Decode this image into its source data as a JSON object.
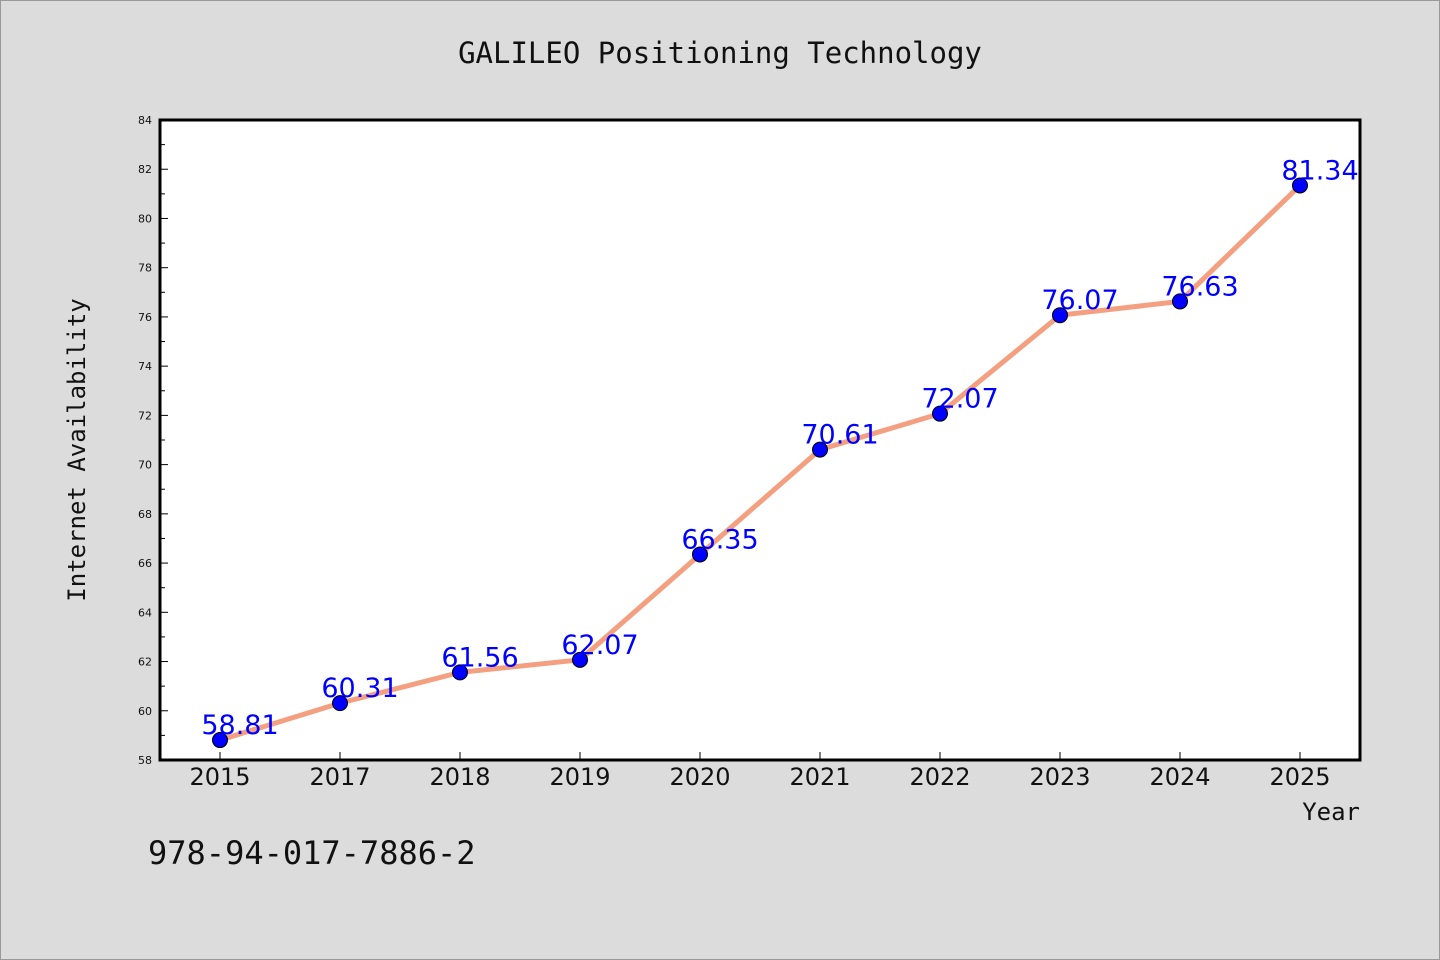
{
  "chart_data": {
    "type": "line",
    "title": "GALILEO Positioning Technology",
    "xlabel": "Year",
    "ylabel": "Internet Availability",
    "categories": [
      "2015",
      "2017",
      "2018",
      "2019",
      "2020",
      "2021",
      "2022",
      "2023",
      "2024",
      "2025"
    ],
    "series": [
      {
        "values": [
          58.81,
          60.31,
          61.56,
          62.07,
          66.35,
          70.61,
          72.07,
          76.07,
          76.63,
          81.34
        ],
        "labels": [
          "58.81",
          "60.31",
          "61.56",
          "62.07",
          "66.35",
          "70.61",
          "72.07",
          "76.07",
          "76.63",
          "81.34"
        ],
        "line_color": "#f4a080",
        "marker_color": "#0000ff"
      }
    ],
    "ylim": [
      58,
      84
    ],
    "yticks": [
      58,
      60,
      62,
      64,
      66,
      68,
      70,
      72,
      74,
      76,
      78,
      80,
      82,
      84
    ],
    "ytick_labels": [
      "58",
      "60",
      "62",
      "64",
      "66",
      "68",
      "70",
      "72",
      "74",
      "76",
      "78",
      "80",
      "82",
      "84"
    ],
    "grid": false,
    "label_color": "#0000ff"
  },
  "footer_text": "978-94-017-7886-2"
}
